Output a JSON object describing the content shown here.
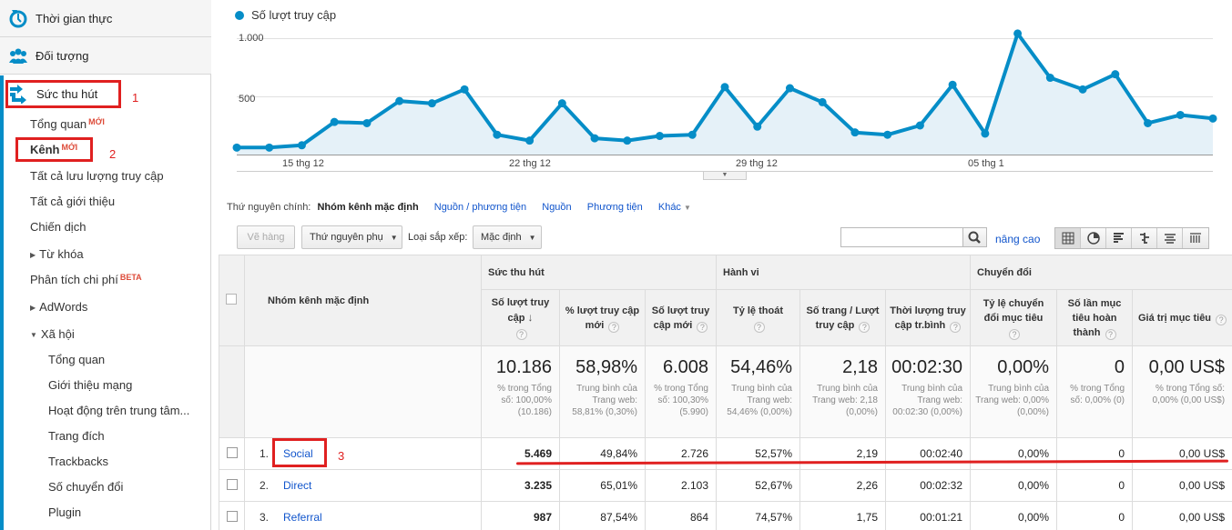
{
  "sidebar": {
    "realtime": "Thời gian thực",
    "audience": "Đối tượng",
    "acquisition": "Sức thu hút",
    "items": [
      {
        "label": "Tổng quan",
        "badge": "MỚI"
      },
      {
        "label": "Kênh",
        "badge": "MỚI"
      },
      {
        "label": "Tất cả lưu lượng truy cập"
      },
      {
        "label": "Tất cả giới thiệu"
      },
      {
        "label": "Chiến dịch"
      },
      {
        "label": "Từ khóa"
      },
      {
        "label": "Phân tích chi phí",
        "badge": "BETA"
      },
      {
        "label": "AdWords"
      },
      {
        "label": "Xã hội"
      },
      {
        "label": "Tổng quan"
      },
      {
        "label": "Giới thiệu mạng"
      },
      {
        "label": "Hoạt động trên trung tâm..."
      },
      {
        "label": "Trang đích"
      },
      {
        "label": "Trackbacks"
      },
      {
        "label": "Số chuyển đổi"
      },
      {
        "label": "Plugin"
      }
    ]
  },
  "annotations": [
    "1",
    "2",
    "3"
  ],
  "chart_data": {
    "type": "area",
    "series": [
      {
        "name": "Số lượt truy cập",
        "color": "#058dc7"
      }
    ],
    "y_ticks": [
      "1.000",
      "500"
    ],
    "x_ticks": [
      "15 thg 12",
      "22 thg 12",
      "29 thg 12",
      "05 thg 1"
    ],
    "ylim": [
      0,
      1000
    ],
    "values": [
      60,
      60,
      80,
      280,
      270,
      460,
      440,
      560,
      170,
      120,
      440,
      140,
      120,
      160,
      170,
      580,
      240,
      570,
      450,
      190,
      170,
      250,
      600,
      180,
      1040,
      660,
      560,
      690,
      270,
      340,
      310
    ]
  },
  "dimension_bar": {
    "label": "Thứ nguyên chính:",
    "selected": "Nhóm kênh mặc định",
    "options": [
      "Nguồn / phương tiện",
      "Nguồn",
      "Phương tiện"
    ],
    "more": "Khác"
  },
  "toolbar": {
    "plot_rows": "Vẽ hàng",
    "secondary_dim": "Thứ nguyên phụ",
    "sort_label": "Loại sắp xếp:",
    "sort_value": "Mặc định",
    "search_value": "",
    "advanced": "nâng cao"
  },
  "table": {
    "dim_header": "Nhóm kênh mặc định",
    "groups": [
      "Sức thu hút",
      "Hành vi",
      "Chuyển đổi"
    ],
    "columns": [
      "Số lượt truy cập",
      "% lượt truy cập mới",
      "Số lượt truy cập mới",
      "Tỷ lệ thoát",
      "Số trang / Lượt truy cập",
      "Thời lượng truy cập tr.bình",
      "Tỷ lệ chuyển đổi mục tiêu",
      "Số lần mục tiêu hoàn thành",
      "Giá trị mục tiêu"
    ],
    "totals": [
      {
        "value": "10.186",
        "sub": "% trong Tổng số: 100,00% (10.186)"
      },
      {
        "value": "58,98%",
        "sub": "Trung bình của Trang web: 58,81% (0,30%)"
      },
      {
        "value": "6.008",
        "sub": "% trong Tổng số: 100,30% (5.990)"
      },
      {
        "value": "54,46%",
        "sub": "Trung bình của Trang web: 54,46% (0,00%)"
      },
      {
        "value": "2,18",
        "sub": "Trung bình của Trang web: 2,18 (0,00%)"
      },
      {
        "value": "00:02:30",
        "sub": "Trung bình của Trang web: 00:02:30 (0,00%)"
      },
      {
        "value": "0,00%",
        "sub": "Trung bình của Trang web: 0,00% (0,00%)"
      },
      {
        "value": "0",
        "sub": "% trong Tổng số: 0,00% (0)"
      },
      {
        "value": "0,00 US$",
        "sub": "% trong Tổng số: 0,00% (0,00 US$)"
      }
    ],
    "rows": [
      {
        "idx": "1.",
        "name": "Social",
        "cells": [
          "5.469",
          "49,84%",
          "2.726",
          "52,57%",
          "2,19",
          "00:02:40",
          "0,00%",
          "0",
          "0,00 US$"
        ]
      },
      {
        "idx": "2.",
        "name": "Direct",
        "cells": [
          "3.235",
          "65,01%",
          "2.103",
          "52,67%",
          "2,26",
          "00:02:32",
          "0,00%",
          "0",
          "0,00 US$"
        ]
      },
      {
        "idx": "3.",
        "name": "Referral",
        "cells": [
          "987",
          "87,54%",
          "864",
          "74,57%",
          "1,75",
          "00:01:21",
          "0,00%",
          "0",
          "0,00 US$"
        ]
      }
    ]
  }
}
